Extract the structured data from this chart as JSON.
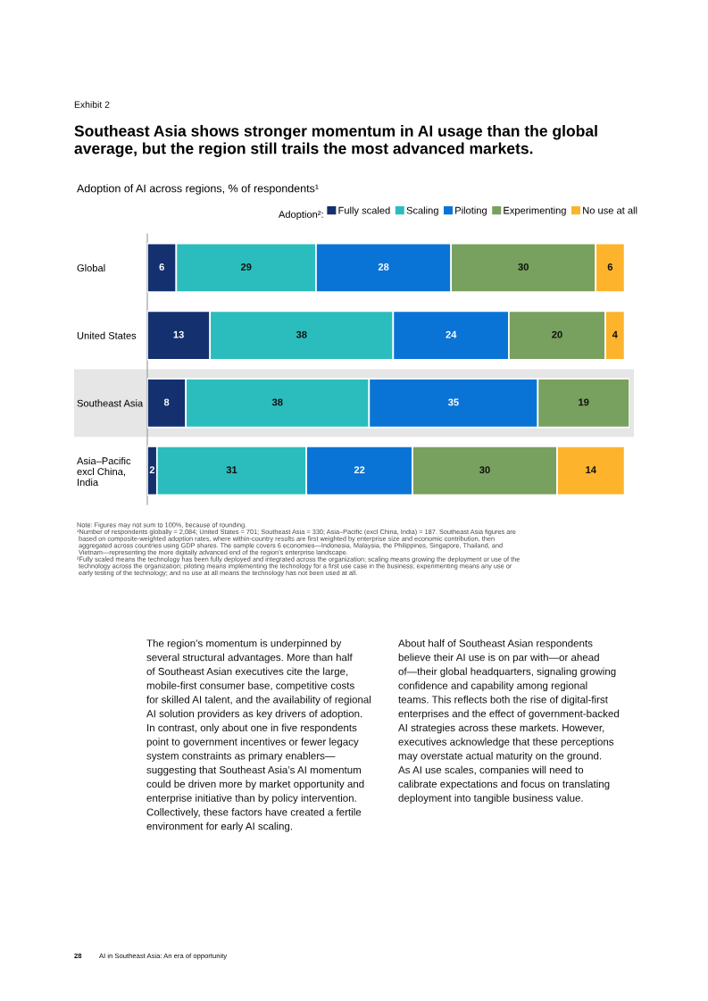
{
  "chart_data": {
    "type": "bar",
    "orientation": "horizontal",
    "stacked": true,
    "data_labels": true,
    "tick_labels": "y",
    "grid": false,
    "legend": "top right",
    "title": "Southeast Asia shows stronger momentum in AI usage than the global\naverage, but the region still trails the most advanced markets.",
    "subtitle": "Adoption of AI across regions, % of respondents¹",
    "legend_title": "Adoption²:",
    "categories": [
      "Global",
      "United States",
      "Southeast Asia",
      "Asia–Pacific\nexcl China,\nIndia"
    ],
    "xlim": [
      0,
      100
    ],
    "bands": [
      {
        "axis": "y",
        "from": "Southeast Asia",
        "to": "Southeast Asia",
        "color": "#e6e6e6"
      }
    ],
    "series": [
      {
        "name": "Fully scaled",
        "color": "#14306e",
        "values": [
          6,
          13,
          8,
          2
        ]
      },
      {
        "name": "Scaling",
        "color": "#2bbdbd",
        "values": [
          29,
          38,
          38,
          31
        ]
      },
      {
        "name": "Piloting",
        "color": "#0a74d6",
        "values": [
          28,
          24,
          35,
          22
        ]
      },
      {
        "name": "Experimenting",
        "color": "#78a05e",
        "values": [
          30,
          20,
          19,
          30
        ]
      },
      {
        "name": "No use at all",
        "color": "#fdb42c",
        "values": [
          6,
          4,
          null,
          14
        ]
      }
    ],
    "annotations": [
      "Exhibit 2",
      "Note: Figures may not sum to 100%, because of rounding.\n¹Number of respondents globally = 2,084; United States = 701; Southeast Asia = 330; Asia–Pacific (excl China, India) = 187. Southeast Asia figures are\n based on composite-weighted adoption rates, where within-country results are first weighted by enterprise size and economic contribution, then\n aggregated across countries using GDP shares. The sample covers 6 economies—Indonesia, Malaysia, the Philippines, Singapore, Thailand, and\n Vietnam—representing the more digitally advanced end of the region’s enterprise landscape.\n²Fully scaled means the technology has been fully deployed and integrated across the organization; scaling means growing the deployment or use of the\n technology across the organization; piloting means implementing the technology for a first use case in the business; experimenting means any use or\n early testing of the technology; and no use at all means the technology has not been used at all.",
      "The region’s momentum is underpinned by\nseveral structural advantages. More than half\nof Southeast Asian executives cite the large,\nmobile-first consumer base, competitive costs\nfor skilled AI talent, and the availability of regional\nAI solution providers as key drivers of adoption.\nIn contrast, only about one in five respondents\npoint to government incentives or fewer legacy\nsystem constraints as primary enablers—\nsuggesting that Southeast Asia’s AI momentum\ncould be driven more by market opportunity and\nenterprise initiative than by policy intervention.\nCollectively, these factors have created a fertile\nenvironment for early AI scaling.",
      "About half of Southeast Asian respondents\nbelieve their AI use is on par with—or ahead\nof—their global headquarters, signaling growing\nconfidence and capability among regional\nteams. This reflects both the rise of digital-first\nenterprises and the effect of government-backed\nAI strategies across these markets. However,\nexecutives acknowledge that these perceptions\nmay overstate actual maturity on the ground.\nAs AI use scales, companies will need to\ncalibrate expectations and focus on translating\ndeployment into tangible business value.",
      "28",
      "AI in Southeast Asia: An era of opportunity"
    ]
  }
}
